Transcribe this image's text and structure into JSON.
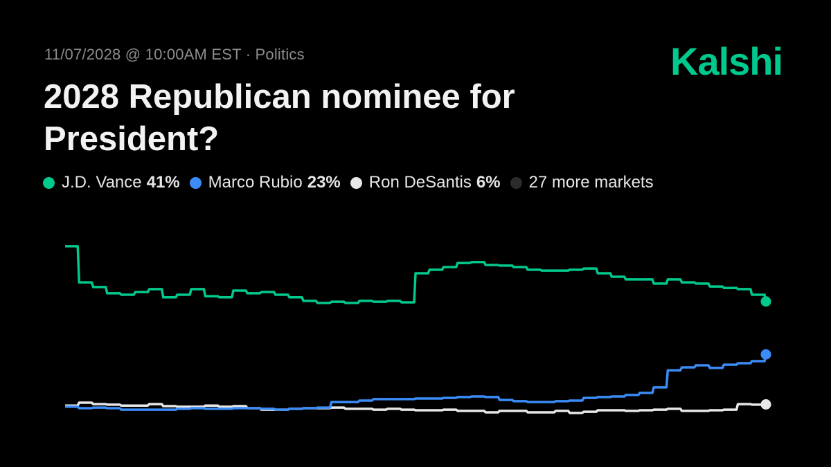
{
  "header": {
    "meta": "11/07/2028  @ 10:00AM EST · Politics",
    "title": "2028 Republican nominee for President?",
    "logo": "Kalshi"
  },
  "legend": [
    {
      "name": "J.D. Vance",
      "value": "41%",
      "color": "#00c98d"
    },
    {
      "name": "Marco Rubio",
      "value": "23%",
      "color": "#3b8cf7"
    },
    {
      "name": "Ron DeSantis",
      "value": "6%",
      "color": "#e8e8e8"
    },
    {
      "name": "27 more markets",
      "value": "",
      "color": "#2b2b2b"
    }
  ],
  "chart_data": {
    "type": "line",
    "title": "",
    "xlabel": "",
    "ylabel": "",
    "ylim": [
      0,
      60
    ],
    "grid": false,
    "legend_position": "top",
    "y_unit": "%",
    "series": [
      {
        "name": "J.D. Vance",
        "color": "#00c98d",
        "values": [
          59.8,
          47.5,
          45.9,
          43.8,
          43.3,
          44.2,
          45.2,
          42.4,
          43.3,
          45.2,
          42.8,
          42.4,
          44.7,
          43.8,
          44.2,
          43.3,
          42.4,
          41.2,
          40.5,
          40.9,
          40.5,
          41.2,
          40.9,
          41.2,
          40.7,
          50.6,
          51.8,
          52.7,
          54.1,
          54.4,
          53.4,
          53.2,
          52.7,
          51.8,
          51.5,
          51.5,
          51.8,
          52.2,
          50.6,
          49.4,
          48.5,
          48.5,
          47.1,
          48.5,
          47.5,
          47.1,
          46.1,
          45.6,
          45.2,
          43.3,
          41
        ]
      },
      {
        "name": "Marco Rubio",
        "color": "#3b8cf7",
        "values": [
          5.2,
          4.7,
          4.9,
          4.7,
          4.2,
          4.2,
          4.2,
          4.2,
          4.5,
          4.7,
          4.5,
          4.5,
          4.7,
          4.7,
          4.5,
          4.2,
          4.5,
          4.7,
          4.9,
          6.8,
          6.8,
          7.3,
          7.8,
          7.8,
          7.8,
          8.0,
          8.0,
          8.2,
          8.5,
          8.7,
          8.5,
          7.5,
          7.1,
          6.8,
          6.8,
          7.1,
          7.3,
          8.2,
          8.5,
          8.7,
          9.2,
          9.9,
          11.8,
          17.6,
          18.6,
          19.3,
          18.4,
          19.5,
          20.0,
          20.7,
          23
        ]
      },
      {
        "name": "Ron DeSantis",
        "color": "#e8e8e8",
        "values": [
          5.6,
          6.6,
          6.1,
          5.9,
          5.6,
          5.6,
          6.1,
          5.4,
          5.2,
          5.2,
          5.6,
          5.2,
          5.4,
          4.7,
          4.2,
          4.2,
          4.5,
          4.7,
          4.7,
          4.9,
          4.5,
          4.5,
          4.2,
          4.5,
          4.2,
          4.0,
          4.0,
          4.2,
          3.8,
          3.8,
          3.3,
          3.8,
          3.8,
          3.3,
          3.3,
          3.8,
          3.1,
          3.5,
          4.0,
          4.0,
          3.8,
          4.0,
          4.2,
          4.5,
          3.8,
          3.8,
          4.0,
          4.2,
          6.1,
          5.9,
          6
        ]
      }
    ]
  }
}
